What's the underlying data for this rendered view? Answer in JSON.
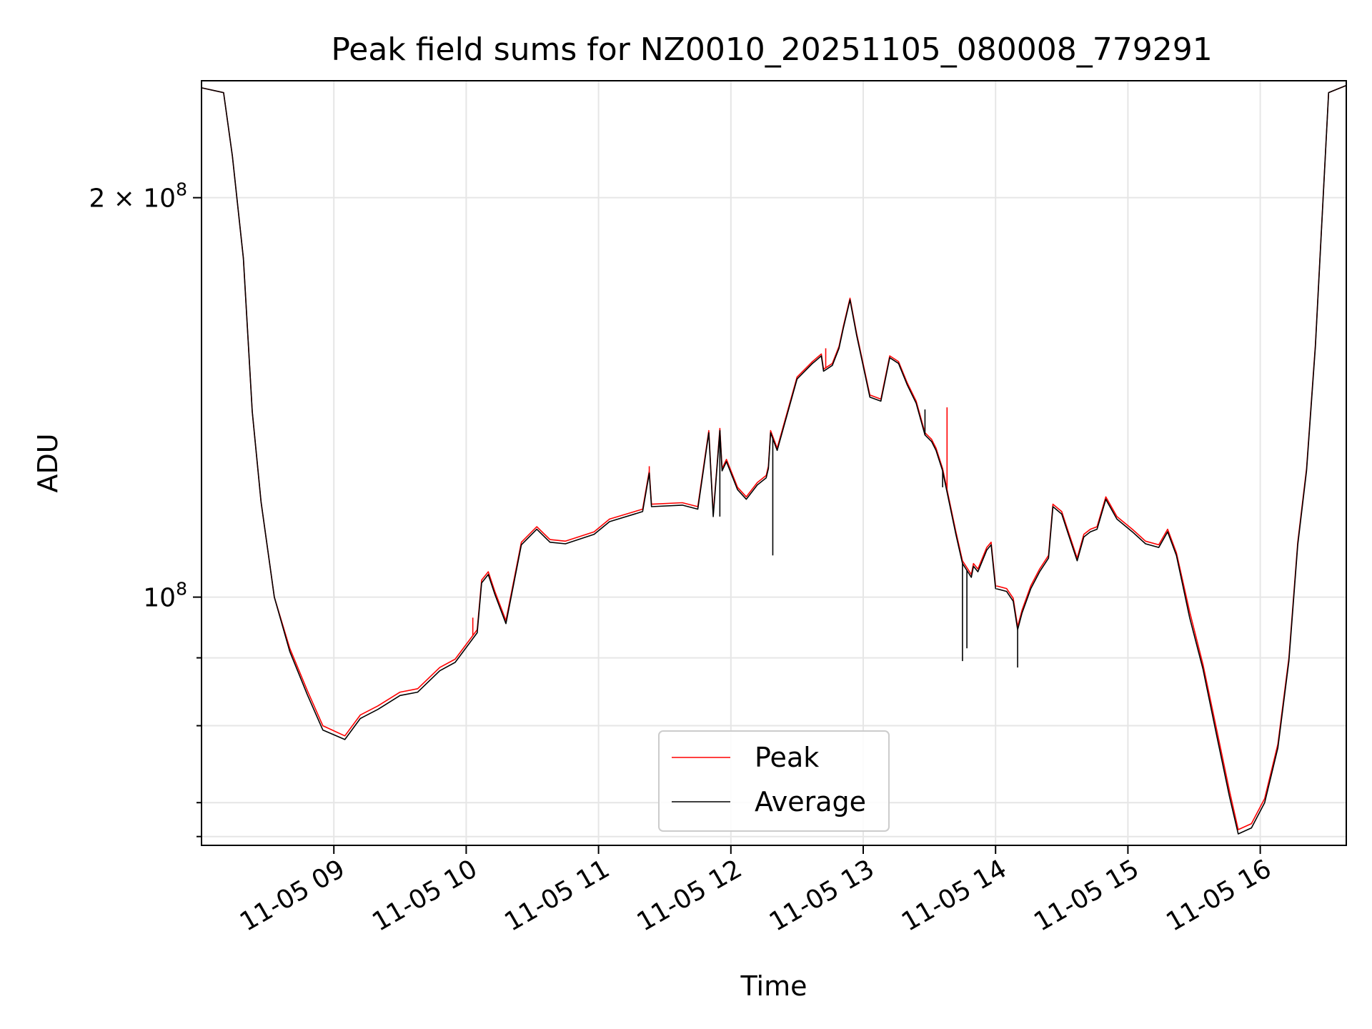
{
  "chart_data": {
    "type": "line",
    "title": "Peak field sums for NZ0010_20251105_080008_779291",
    "xlabel": "Time",
    "ylabel": "ADU",
    "yscale": "log",
    "xlim": [
      "2025-11-05 08:00",
      "2025-11-05 16:39"
    ],
    "ylim": [
      65000000,
      245000000
    ],
    "grid": true,
    "legend_position": "lower center",
    "x_ticks": [
      {
        "value": "2025-11-05 09:00",
        "label": "11-05 09"
      },
      {
        "value": "2025-11-05 10:00",
        "label": "11-05 10"
      },
      {
        "value": "2025-11-05 11:00",
        "label": "11-05 11"
      },
      {
        "value": "2025-11-05 12:00",
        "label": "11-05 12"
      },
      {
        "value": "2025-11-05 13:00",
        "label": "11-05 13"
      },
      {
        "value": "2025-11-05 14:00",
        "label": "11-05 14"
      },
      {
        "value": "2025-11-05 15:00",
        "label": "11-05 15"
      },
      {
        "value": "2025-11-05 16:00",
        "label": "11-05 16"
      }
    ],
    "y_ticks_major": [
      {
        "value": 100000000,
        "base": "10",
        "exp": "8",
        "coef": ""
      },
      {
        "value": 200000000,
        "base": "10",
        "exp": "8",
        "coef": "2"
      }
    ],
    "y_ticks_minor": [
      66000000,
      70000000,
      80000000,
      90000000
    ],
    "series": [
      {
        "name": "Peak",
        "color": "#ff0000",
        "x": [
          "2025-11-05 08:00",
          "2025-11-05 08:10",
          "2025-11-05 08:14",
          "2025-11-05 08:19",
          "2025-11-05 08:23",
          "2025-11-05 08:27",
          "2025-11-05 08:33",
          "2025-11-05 08:40",
          "2025-11-05 08:48",
          "2025-11-05 08:55",
          "2025-11-05 09:05",
          "2025-11-05 09:12",
          "2025-11-05 09:20",
          "2025-11-05 09:30",
          "2025-11-05 09:38",
          "2025-11-05 09:48",
          "2025-11-05 09:55",
          "2025-11-05 10:05",
          "2025-11-05 10:07",
          "2025-11-05 10:10",
          "2025-11-05 10:13",
          "2025-11-05 10:18",
          "2025-11-05 10:25",
          "2025-11-05 10:32",
          "2025-11-05 10:38",
          "2025-11-05 10:45",
          "2025-11-05 10:58",
          "2025-11-05 11:05",
          "2025-11-05 11:20",
          "2025-11-05 11:23",
          "2025-11-05 11:24",
          "2025-11-05 11:38",
          "2025-11-05 11:45",
          "2025-11-05 11:50",
          "2025-11-05 11:52",
          "2025-11-05 11:55",
          "2025-11-05 11:56",
          "2025-11-05 11:58",
          "2025-11-05 12:03",
          "2025-11-05 12:07",
          "2025-11-05 12:12",
          "2025-11-05 12:16",
          "2025-11-05 12:17",
          "2025-11-05 12:18",
          "2025-11-05 12:21",
          "2025-11-05 12:30",
          "2025-11-05 12:37",
          "2025-11-05 12:38",
          "2025-11-05 12:41",
          "2025-11-05 12:42",
          "2025-11-05 12:46",
          "2025-11-05 12:49",
          "2025-11-05 12:51",
          "2025-11-05 12:54",
          "2025-11-05 12:57",
          "2025-11-05 13:03",
          "2025-11-05 13:08",
          "2025-11-05 13:12",
          "2025-11-05 13:16",
          "2025-11-05 13:20",
          "2025-11-05 13:24",
          "2025-11-05 13:28",
          "2025-11-05 13:31",
          "2025-11-05 13:33",
          "2025-11-05 13:36",
          "2025-11-05 13:42",
          "2025-11-05 13:45",
          "2025-11-05 13:49",
          "2025-11-05 13:50",
          "2025-11-05 13:52",
          "2025-11-05 13:56",
          "2025-11-05 13:58",
          "2025-11-05 14:00",
          "2025-11-05 14:05",
          "2025-11-05 14:08",
          "2025-11-05 14:10",
          "2025-11-05 14:12",
          "2025-11-05 14:16",
          "2025-11-05 14:20",
          "2025-11-05 14:24",
          "2025-11-05 14:26",
          "2025-11-05 14:30",
          "2025-11-05 14:33",
          "2025-11-05 14:37",
          "2025-11-05 14:40",
          "2025-11-05 14:43",
          "2025-11-05 14:46",
          "2025-11-05 14:50",
          "2025-11-05 14:55",
          "2025-11-05 15:02",
          "2025-11-05 15:08",
          "2025-11-05 15:14",
          "2025-11-05 15:18",
          "2025-11-05 15:22",
          "2025-11-05 15:28",
          "2025-11-05 15:34",
          "2025-11-05 15:40",
          "2025-11-05 15:46",
          "2025-11-05 15:50",
          "2025-11-05 15:56",
          "2025-11-05 16:02",
          "2025-11-05 16:08",
          "2025-11-05 16:13",
          "2025-11-05 16:17",
          "2025-11-05 16:21",
          "2025-11-05 16:25",
          "2025-11-05 16:31",
          "2025-11-05 16:39"
        ],
        "values": [
          242000000,
          240000000,
          215000000,
          180000000,
          138000000,
          118000000,
          100000000,
          91500000,
          85000000,
          80000000,
          78600000,
          81500000,
          82800000,
          84800000,
          85300000,
          88500000,
          89800000,
          94500000,
          103000000,
          104500000,
          101000000,
          96000000,
          110000000,
          113000000,
          110500000,
          110200000,
          112000000,
          114500000,
          116500000,
          124500000,
          117500000,
          117800000,
          117000000,
          133500000,
          115500000,
          134000000,
          125000000,
          127000000,
          121000000,
          119000000,
          122000000,
          123500000,
          125500000,
          133500000,
          129500000,
          146500000,
          150500000,
          151000000,
          152500000,
          148500000,
          150000000,
          154500000,
          160000000,
          168000000,
          158000000,
          142000000,
          141000000,
          152000000,
          150500000,
          145000000,
          140500000,
          133000000,
          131500000,
          129500000,
          125000000,
          112000000,
          106500000,
          104000000,
          106000000,
          105000000,
          109000000,
          110000000,
          102000000,
          101500000,
          99800000,
          95000000,
          97800000,
          102000000,
          105000000,
          107500000,
          117500000,
          116000000,
          112000000,
          107000000,
          111500000,
          112500000,
          113000000,
          119000000,
          115000000,
          112500000,
          110200000,
          109500000,
          112500000,
          108000000,
          97500000,
          89000000,
          79800000,
          71500000,
          66800000,
          67500000,
          70500000,
          77500000,
          90000000,
          110000000,
          125000000,
          155000000,
          240000000,
          243000000
        ],
        "spikes": [
          {
            "x": "2025-11-05 10:03",
            "value": 96500000
          },
          {
            "x": "2025-11-05 11:23",
            "value": 125500000
          },
          {
            "x": "2025-11-05 12:43",
            "value": 154000000
          },
          {
            "x": "2025-11-05 13:38",
            "value": 139000000
          }
        ]
      },
      {
        "name": "Average",
        "color": "#000000",
        "x": [
          "2025-11-05 08:00",
          "2025-11-05 08:10",
          "2025-11-05 08:14",
          "2025-11-05 08:19",
          "2025-11-05 08:23",
          "2025-11-05 08:27",
          "2025-11-05 08:33",
          "2025-11-05 08:40",
          "2025-11-05 08:48",
          "2025-11-05 08:55",
          "2025-11-05 09:05",
          "2025-11-05 09:12",
          "2025-11-05 09:20",
          "2025-11-05 09:30",
          "2025-11-05 09:38",
          "2025-11-05 09:48",
          "2025-11-05 09:55",
          "2025-11-05 10:05",
          "2025-11-05 10:07",
          "2025-11-05 10:10",
          "2025-11-05 10:13",
          "2025-11-05 10:18",
          "2025-11-05 10:25",
          "2025-11-05 10:32",
          "2025-11-05 10:38",
          "2025-11-05 10:45",
          "2025-11-05 10:58",
          "2025-11-05 11:05",
          "2025-11-05 11:20",
          "2025-11-05 11:23",
          "2025-11-05 11:24",
          "2025-11-05 11:38",
          "2025-11-05 11:45",
          "2025-11-05 11:50",
          "2025-11-05 11:52",
          "2025-11-05 11:55",
          "2025-11-05 11:56",
          "2025-11-05 11:58",
          "2025-11-05 12:03",
          "2025-11-05 12:07",
          "2025-11-05 12:12",
          "2025-11-05 12:16",
          "2025-11-05 12:17",
          "2025-11-05 12:18",
          "2025-11-05 12:21",
          "2025-11-05 12:30",
          "2025-11-05 12:37",
          "2025-11-05 12:38",
          "2025-11-05 12:41",
          "2025-11-05 12:42",
          "2025-11-05 12:46",
          "2025-11-05 12:49",
          "2025-11-05 12:51",
          "2025-11-05 12:54",
          "2025-11-05 12:57",
          "2025-11-05 13:03",
          "2025-11-05 13:08",
          "2025-11-05 13:12",
          "2025-11-05 13:16",
          "2025-11-05 13:20",
          "2025-11-05 13:24",
          "2025-11-05 13:28",
          "2025-11-05 13:31",
          "2025-11-05 13:33",
          "2025-11-05 13:36",
          "2025-11-05 13:42",
          "2025-11-05 13:45",
          "2025-11-05 13:49",
          "2025-11-05 13:50",
          "2025-11-05 13:52",
          "2025-11-05 13:56",
          "2025-11-05 13:58",
          "2025-11-05 14:00",
          "2025-11-05 14:05",
          "2025-11-05 14:08",
          "2025-11-05 14:10",
          "2025-11-05 14:12",
          "2025-11-05 14:16",
          "2025-11-05 14:20",
          "2025-11-05 14:24",
          "2025-11-05 14:26",
          "2025-11-05 14:30",
          "2025-11-05 14:33",
          "2025-11-05 14:37",
          "2025-11-05 14:40",
          "2025-11-05 14:43",
          "2025-11-05 14:46",
          "2025-11-05 14:50",
          "2025-11-05 14:55",
          "2025-11-05 15:02",
          "2025-11-05 15:08",
          "2025-11-05 15:14",
          "2025-11-05 15:18",
          "2025-11-05 15:22",
          "2025-11-05 15:28",
          "2025-11-05 15:34",
          "2025-11-05 15:40",
          "2025-11-05 15:46",
          "2025-11-05 15:50",
          "2025-11-05 15:56",
          "2025-11-05 16:02",
          "2025-11-05 16:08",
          "2025-11-05 16:13",
          "2025-11-05 16:17",
          "2025-11-05 16:21",
          "2025-11-05 16:25",
          "2025-11-05 16:31",
          "2025-11-05 16:39"
        ],
        "values": [
          242000000,
          240000000,
          215000000,
          180000000,
          138000000,
          118000000,
          100000000,
          91000000,
          84400000,
          79400000,
          78100000,
          81000000,
          82300000,
          84300000,
          84800000,
          88000000,
          89300000,
          94000000,
          102500000,
          104000000,
          100500000,
          95500000,
          109500000,
          112500000,
          110000000,
          109700000,
          111500000,
          114000000,
          116000000,
          124000000,
          117000000,
          117300000,
          116500000,
          133000000,
          115000000,
          133500000,
          124500000,
          126500000,
          120500000,
          118500000,
          121500000,
          123000000,
          125000000,
          133000000,
          129000000,
          146000000,
          150000000,
          150500000,
          152000000,
          148000000,
          149500000,
          154000000,
          159500000,
          167500000,
          157500000,
          141500000,
          140500000,
          151500000,
          150000000,
          144500000,
          140000000,
          132500000,
          131000000,
          129000000,
          124500000,
          111500000,
          106000000,
          103500000,
          105500000,
          104500000,
          108500000,
          109500000,
          101500000,
          101000000,
          99300000,
          94500000,
          97300000,
          101500000,
          104500000,
          107000000,
          117000000,
          115500000,
          111500000,
          106500000,
          111000000,
          112000000,
          112500000,
          118500000,
          114500000,
          112000000,
          109700000,
          109000000,
          112000000,
          107500000,
          96500000,
          88300000,
          79000000,
          70800000,
          66300000,
          67000000,
          70000000,
          77000000,
          89500000,
          109500000,
          124500000,
          154500000,
          240000000,
          243000000
        ],
        "spikes": [
          {
            "x": "2025-11-05 12:19",
            "value": 107500000
          },
          {
            "x": "2025-11-05 13:45",
            "value": 89500000
          },
          {
            "x": "2025-11-05 13:47",
            "value": 91500000
          },
          {
            "x": "2025-11-05 14:10",
            "value": 88500000
          },
          {
            "x": "2025-11-05 13:36",
            "value": 121000000
          },
          {
            "x": "2025-11-05 11:55",
            "value": 115000000
          },
          {
            "x": "2025-11-05 13:28",
            "value": 138500000
          }
        ]
      }
    ]
  }
}
